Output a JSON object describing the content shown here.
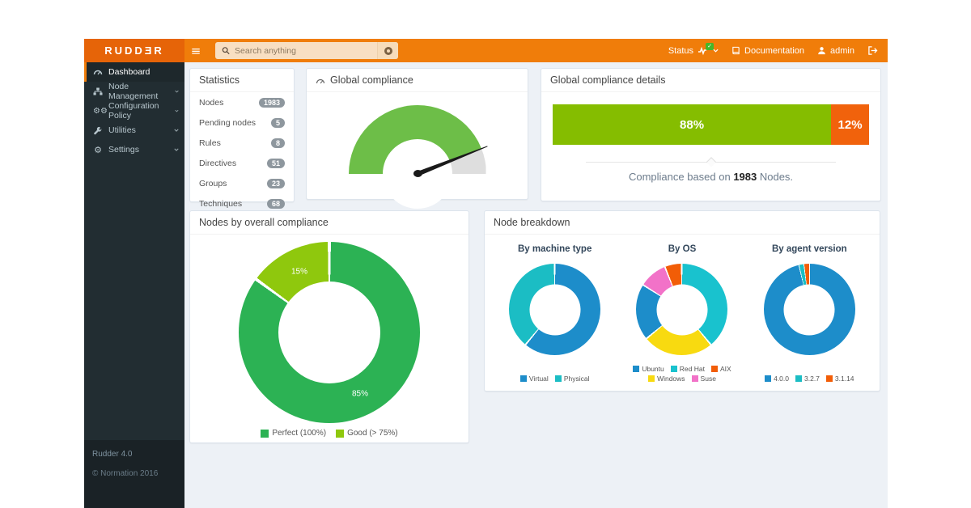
{
  "header": {
    "logo": "RUDDƎR",
    "search": {
      "placeholder": "Search anything"
    },
    "status_label": "Status",
    "documentation_label": "Documentation",
    "user_label": "admin"
  },
  "sidebar": {
    "items": [
      {
        "label": "Dashboard"
      },
      {
        "label": "Node Management"
      },
      {
        "label": "Configuration Policy"
      },
      {
        "label": "Utilities"
      },
      {
        "label": "Settings"
      }
    ],
    "footer": {
      "version": "Rudder 4.0",
      "copyright": "© Normation 2016"
    }
  },
  "panels": {
    "statistics": {
      "title": "Statistics",
      "rows": [
        {
          "label": "Nodes",
          "value": "1983"
        },
        {
          "label": "Pending nodes",
          "value": "5"
        },
        {
          "label": "Rules",
          "value": "8"
        },
        {
          "label": "Directives",
          "value": "51"
        },
        {
          "label": "Groups",
          "value": "23"
        },
        {
          "label": "Techniques",
          "value": "68"
        }
      ]
    },
    "global_compliance": {
      "title": "Global compliance"
    },
    "compliance_details": {
      "title": "Global compliance details",
      "caption_prefix": "Compliance based on ",
      "caption_value": "1983",
      "caption_suffix": " Nodes."
    },
    "nodes_by_compliance": {
      "title": "Nodes by overall compliance",
      "slice_labels": {
        "big": "85%",
        "small": "15%"
      },
      "legend": [
        {
          "label": "Perfect (100%)",
          "color": "#2cb254"
        },
        {
          "label": "Good (> 75%)",
          "color": "#8fc80d"
        }
      ]
    },
    "node_breakdown": {
      "title": "Node breakdown",
      "charts": [
        {
          "subtitle": "By machine type",
          "legend": [
            {
              "label": "Virtual",
              "color": "#1d8dca"
            },
            {
              "label": "Physical",
              "color": "#1bbdc4"
            }
          ]
        },
        {
          "subtitle": "By OS",
          "legend": [
            {
              "label": "Ubuntu",
              "color": "#1d8dca"
            },
            {
              "label": "Red Hat",
              "color": "#19c2ce"
            },
            {
              "label": "AIX",
              "color": "#f25d07"
            },
            {
              "label": "Windows",
              "color": "#f8da10"
            },
            {
              "label": "Suse",
              "color": "#f272c8"
            }
          ]
        },
        {
          "subtitle": "By agent version",
          "legend": [
            {
              "label": "4.0.0",
              "color": "#1d8dca"
            },
            {
              "label": "3.2.7",
              "color": "#1bbdc4"
            },
            {
              "label": "3.1.14",
              "color": "#f25d07"
            }
          ]
        }
      ]
    }
  },
  "chart_data": [
    {
      "id": "global-compliance-gauge",
      "type": "gauge",
      "title": "Global compliance",
      "percent": 88,
      "label": "88%",
      "range": [
        0,
        100
      ],
      "colors": {
        "value": "#6dbe48",
        "rest": "#dedede"
      }
    },
    {
      "id": "global-compliance-details-bar",
      "type": "bar",
      "title": "Global compliance details",
      "segments": [
        {
          "label": "88%",
          "value": 88,
          "color": "#85bd00"
        },
        {
          "label": "12%",
          "value": 12,
          "color": "#f1620c"
        }
      ],
      "caption": "Compliance based on 1983 Nodes."
    },
    {
      "id": "nodes-by-overall-compliance",
      "type": "donut",
      "title": "Nodes by overall compliance",
      "labels": [
        "Perfect (100%)",
        "Good (> 75%)"
      ],
      "values": [
        85,
        15
      ],
      "colors": [
        "#2cb254",
        "#8fc80d"
      ],
      "slice_labels": [
        "85%",
        "15%"
      ],
      "gap": 2
    },
    {
      "id": "by-machine-type",
      "type": "donut",
      "title": "By machine type",
      "labels": [
        "Virtual",
        "Physical"
      ],
      "values": [
        61,
        39
      ],
      "colors": [
        "#1d8dca",
        "#1bbdc4"
      ],
      "gap": 2
    },
    {
      "id": "by-os",
      "type": "donut",
      "title": "By OS",
      "labels": [
        "Red Hat",
        "Windows",
        "Ubuntu",
        "Suse",
        "AIX"
      ],
      "values": [
        39,
        25,
        20,
        10,
        6
      ],
      "colors": [
        "#19c2ce",
        "#f8da10",
        "#1d8dca",
        "#f272c8",
        "#f25d07"
      ],
      "legend_order": [
        "Ubuntu",
        "Red Hat",
        "AIX",
        "Windows",
        "Suse"
      ],
      "gap": 2
    },
    {
      "id": "by-agent-version",
      "type": "donut",
      "title": "By agent version",
      "labels": [
        "4.0.0",
        "3.2.7",
        "3.1.14"
      ],
      "values": [
        96.2,
        1.8,
        2.0
      ],
      "colors": [
        "#1d8dca",
        "#1bbdc4",
        "#f25d07"
      ],
      "gap": 1
    }
  ]
}
